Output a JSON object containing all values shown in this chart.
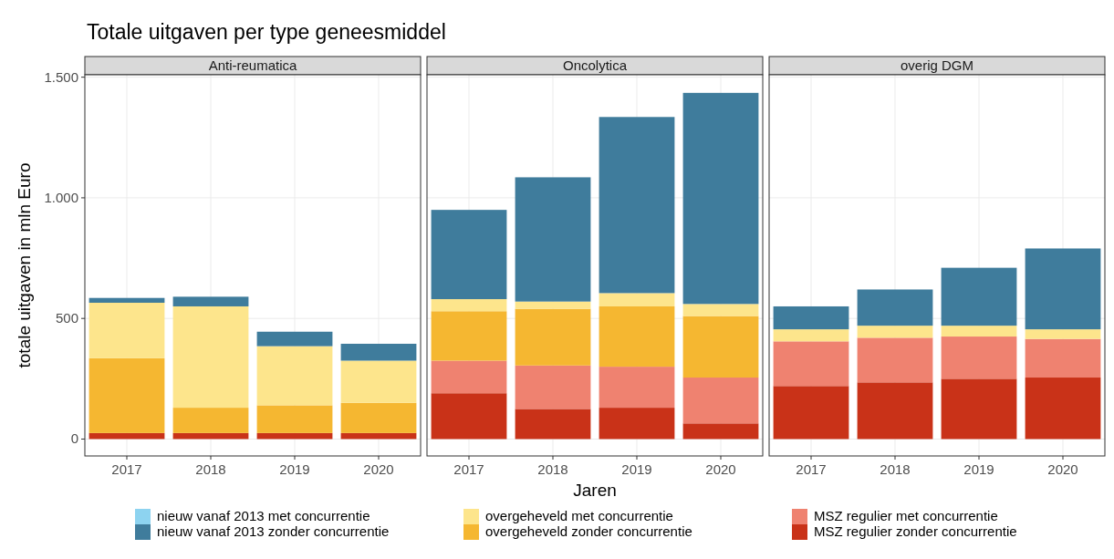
{
  "chart_data": [
    {
      "type": "bar",
      "title": "Totale uitgaven per type geneesmiddel",
      "subtitle": "Anti-reumatica",
      "ylabel": "totale uitgaven in mln Euro",
      "categories": [
        "2017",
        "2018",
        "2019",
        "2020"
      ],
      "stacked": true,
      "ylim": [
        -70,
        1510
      ],
      "yticks": [
        0,
        500,
        {
          "value": 1000,
          "label": "1.000"
        },
        {
          "value": 1500,
          "label": "1.500"
        }
      ],
      "grid": true,
      "legend": "bottom",
      "series": [
        {
          "name": "MSZ regulier zonder concurrentie",
          "color": "#c93218",
          "values": [
            25,
            25,
            25,
            25
          ]
        },
        {
          "name": "MSZ regulier met concurrentie",
          "color": "#ef8270",
          "values": [
            0,
            0,
            0,
            0
          ]
        },
        {
          "name": "overgeheveld zonder concurrentie",
          "color": "#f5b731",
          "values": [
            310,
            105,
            115,
            125
          ]
        },
        {
          "name": "overgeheveld met concurrentie",
          "color": "#fde58c",
          "values": [
            230,
            420,
            245,
            175
          ]
        },
        {
          "name": "nieuw vanaf 2013 zonder concurrentie",
          "color": "#3f7c9c",
          "values": [
            20,
            40,
            60,
            70
          ]
        },
        {
          "name": "nieuw vanaf 2013 met concurrentie",
          "color": "#8dd3f0",
          "values": [
            0,
            0,
            0,
            0
          ]
        }
      ]
    },
    {
      "type": "bar",
      "title": "Oncolytica",
      "xlabel": "Jaren",
      "categories": [
        "2017",
        "2018",
        "2019",
        "2020"
      ],
      "stacked": true,
      "ylim": [
        -70,
        1510
      ],
      "yticks": [
        0,
        500,
        1000,
        1500
      ],
      "grid": true,
      "tick_labels": "x",
      "series": [
        {
          "color": "#c93218",
          "values": [
            190,
            125,
            130,
            65
          ]
        },
        {
          "color": "#ef8270",
          "values": [
            135,
            180,
            170,
            190
          ]
        },
        {
          "color": "#f5b731",
          "values": [
            205,
            235,
            250,
            255
          ]
        },
        {
          "color": "#fde58c",
          "values": [
            50,
            30,
            55,
            50
          ]
        },
        {
          "color": "#3f7c9c",
          "values": [
            370,
            515,
            730,
            875
          ]
        },
        {
          "color": "#8dd3f0",
          "values": [
            0,
            0,
            0,
            0
          ]
        }
      ]
    },
    {
      "type": "bar",
      "title": "overig DGM",
      "categories": [
        "2017",
        "2018",
        "2019",
        "2020"
      ],
      "stacked": true,
      "ylim": [
        -70,
        1510
      ],
      "yticks": [
        0,
        500,
        1000,
        1500
      ],
      "grid": true,
      "tick_labels": "x",
      "series": [
        {
          "color": "#c93218",
          "values": [
            220,
            235,
            250,
            255
          ]
        },
        {
          "color": "#ef8270",
          "values": [
            185,
            185,
            175,
            160
          ]
        },
        {
          "color": "#f5b731",
          "values": [
            0,
            0,
            0,
            0
          ]
        },
        {
          "color": "#fde58c",
          "values": [
            50,
            50,
            45,
            40
          ]
        },
        {
          "color": "#3f7c9c",
          "values": [
            95,
            150,
            240,
            335
          ]
        },
        {
          "color": "#8dd3f0",
          "values": [
            0,
            0,
            0,
            0
          ]
        }
      ]
    }
  ]
}
